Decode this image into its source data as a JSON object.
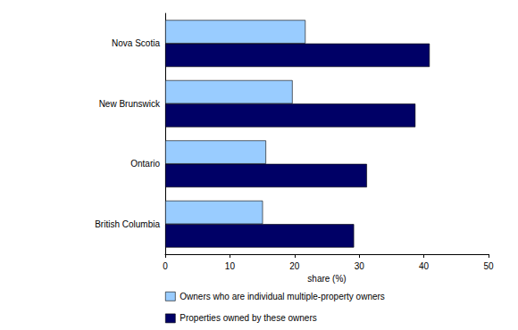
{
  "chart_data": {
    "type": "bar",
    "orientation": "horizontal",
    "categories": [
      "Nova Scotia",
      "New Brunswick",
      "Ontario",
      "British Columbia"
    ],
    "series": [
      {
        "name": "Owners who are individual multiple-property owners",
        "color": "#99ccff",
        "values": [
          21.7,
          19.7,
          15.6,
          15.1
        ]
      },
      {
        "name": "Properties owned by these owners",
        "color": "#000066",
        "values": [
          40.9,
          38.7,
          31.2,
          29.2
        ]
      }
    ],
    "xlabel": "share (%)",
    "xlim": [
      0,
      50
    ],
    "xticks": [
      0,
      10,
      20,
      30,
      40,
      50
    ],
    "grid": false,
    "legend": "bottom"
  }
}
